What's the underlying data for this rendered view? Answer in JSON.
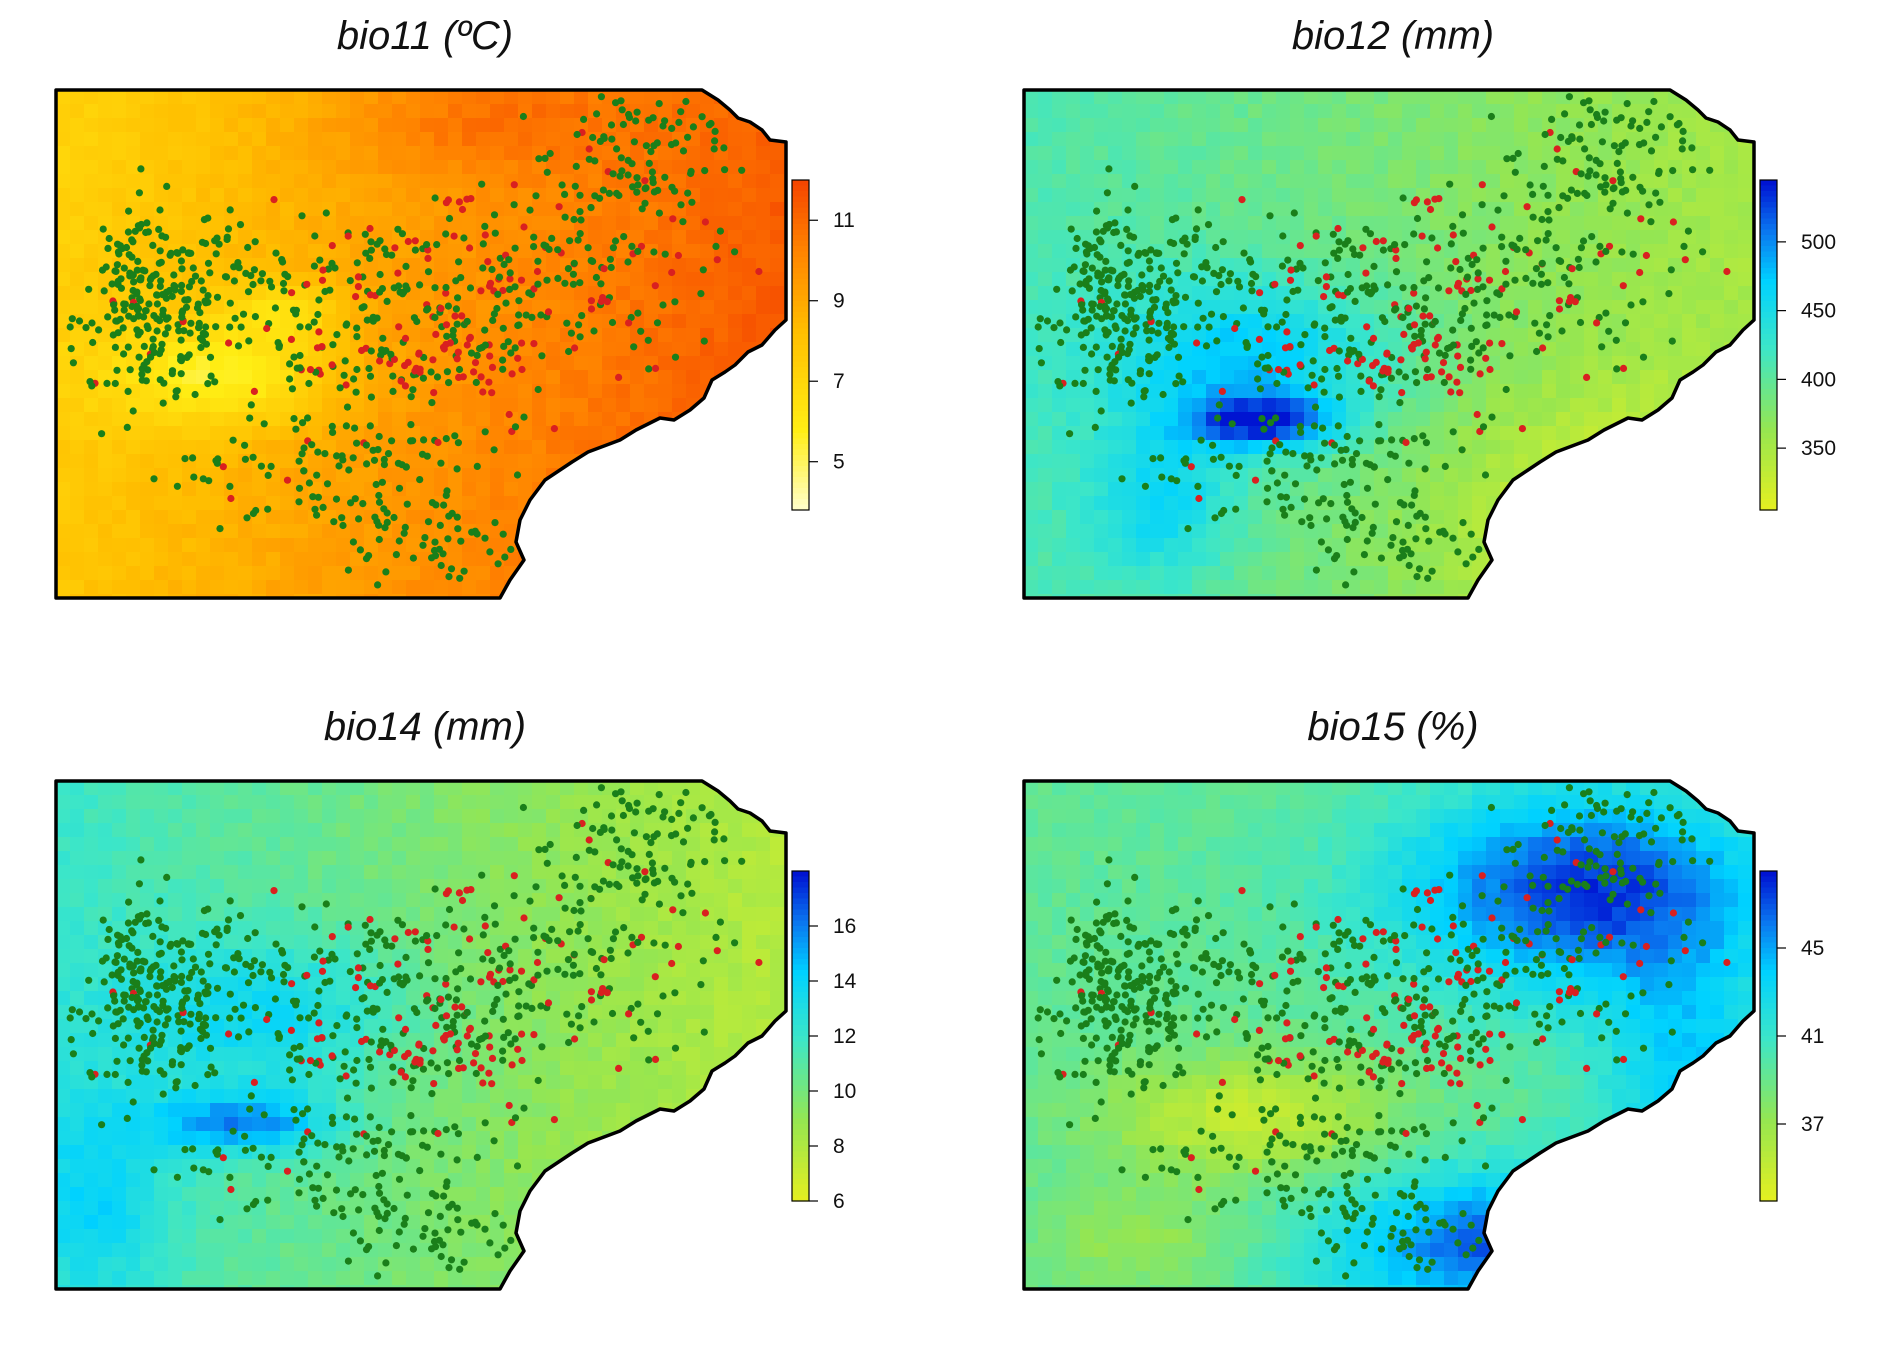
{
  "panels": [
    {
      "title": "bio11 (ºC)",
      "scale": "warm",
      "legend": {
        "min": 3.8,
        "max": 12.0,
        "ticks": [
          "11",
          "9",
          "7",
          "5"
        ],
        "tick_values": [
          11,
          9,
          7,
          5
        ]
      }
    },
    {
      "title": "bio12 (mm)",
      "scale": "cool",
      "legend": {
        "min": 305,
        "max": 545,
        "ticks": [
          "500",
          "450",
          "400",
          "350"
        ],
        "tick_values": [
          500,
          450,
          400,
          350
        ]
      }
    },
    {
      "title": "bio14 (mm)",
      "scale": "cool",
      "legend": {
        "min": 6,
        "max": 18,
        "ticks": [
          "16",
          "14",
          "12",
          "10",
          "8",
          "6"
        ],
        "tick_values": [
          16,
          14,
          12,
          10,
          8,
          6
        ]
      }
    },
    {
      "title": "bio15 (%)",
      "scale": "cool",
      "legend": {
        "min": 33.5,
        "max": 48.5,
        "ticks": [
          "45",
          "41",
          "37"
        ],
        "tick_values": [
          45,
          41,
          37
        ]
      }
    }
  ],
  "colors": {
    "green_points": "#1a7f1a",
    "red_points": "#d92020",
    "border": "#000000"
  }
}
